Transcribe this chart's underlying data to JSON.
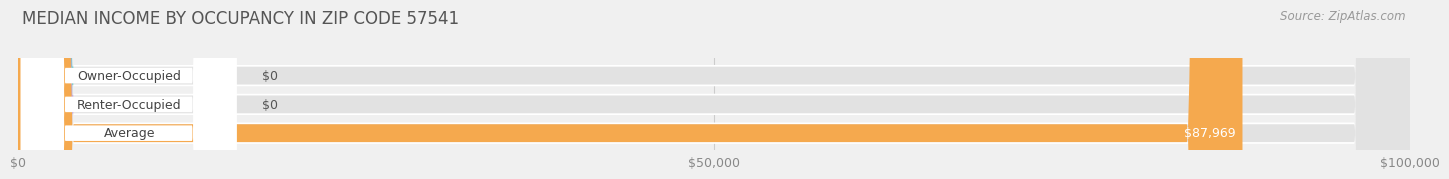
{
  "title": "MEDIAN INCOME BY OCCUPANCY IN ZIP CODE 57541",
  "source": "Source: ZipAtlas.com",
  "categories": [
    "Owner-Occupied",
    "Renter-Occupied",
    "Average"
  ],
  "values": [
    0,
    0,
    87969
  ],
  "bar_colors": [
    "#72cac9",
    "#c4a8d5",
    "#f5a94e"
  ],
  "bar_labels": [
    "$0",
    "$0",
    "$87,969"
  ],
  "xlim": [
    0,
    100000
  ],
  "xticks": [
    0,
    50000,
    100000
  ],
  "xtick_labels": [
    "$0",
    "$50,000",
    "$100,000"
  ],
  "bg_color": "#f0f0f0",
  "bar_bg_color": "#e2e2e2",
  "bar_row_bg": "#ffffff",
  "title_fontsize": 12,
  "label_fontsize": 9,
  "tick_fontsize": 9,
  "source_fontsize": 8.5
}
